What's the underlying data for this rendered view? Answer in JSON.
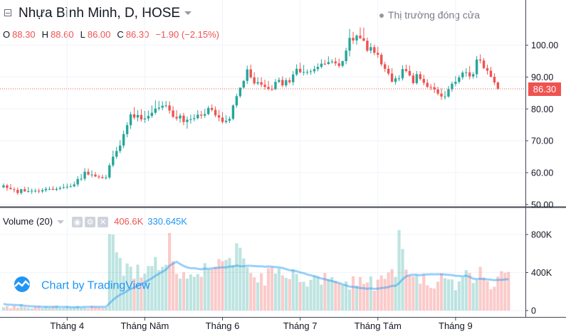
{
  "header": {
    "title": "Nhựa Bình Minh, D, HOSE",
    "market_status": "Thị trường đóng cửa",
    "ohlc": {
      "o_label": "O",
      "o": "88.30",
      "h_label": "H",
      "h": "88.60",
      "l_label": "L",
      "l": "86.00",
      "c_label": "C",
      "c": "86.30",
      "change": "−1.90 (−2.15%)"
    }
  },
  "volume_legend": {
    "label": "Volume (20)",
    "volume": "406.6K",
    "ma": "330.645K"
  },
  "last_price_label": "86.30",
  "watermark": "Chart by TradingView",
  "icons": {
    "collapse": "collapse-icon",
    "dropdown": "chevron-down-icon",
    "status": "status-dot-icon",
    "eye": "eye-icon",
    "settings": "gear-icon",
    "close": "close-icon",
    "logo": "tradingview-cloud-icon"
  },
  "colors": {
    "up": "#26a69a",
    "down": "#ef5350",
    "ma_line": "#2196f3",
    "grid": "#f0f3fa"
  },
  "chart_data": [
    {
      "type": "candlestick",
      "title": "Nhựa Bình Minh, D, HOSE",
      "y_ticks": [
        50,
        60,
        70,
        80,
        90,
        100
      ],
      "y_tick_labels": [
        "50.00",
        "60.00",
        "70.00",
        "80.00",
        "90.00",
        "100.00"
      ],
      "ylim": [
        49.5,
        107.5
      ],
      "last_price": 86.3,
      "x_tick_labels": [
        "Tháng 4",
        "Tháng Năm",
        "Tháng 6",
        "Tháng 7",
        "Tháng Tám",
        "Tháng 9"
      ],
      "x_tick_index": [
        18,
        40,
        62,
        84,
        106,
        128
      ],
      "grid": true,
      "series": {
        "open": [
          55.4,
          56.0,
          55.2,
          54.8,
          54.6,
          53.6,
          54.8,
          54.1,
          54.2,
          54.3,
          54.3,
          54.1,
          54.5,
          54.9,
          54.9,
          54.6,
          54.9,
          55.2,
          55.4,
          55.6,
          55.7,
          56.3,
          58.0,
          58.1,
          60.3,
          59.4,
          59.4,
          58.8,
          58.6,
          58.3,
          58.5,
          62.3,
          65.0,
          66.8,
          68.5,
          72.1,
          74.9,
          78.3,
          77.3,
          78.1,
          76.7,
          77.0,
          77.8,
          78.8,
          80.1,
          80.4,
          81.0,
          81.1,
          79.5,
          77.5,
          77.0,
          77.9,
          75.9,
          76.6,
          76.8,
          77.1,
          78.2,
          77.9,
          78.4,
          80.3,
          79.7,
          78.0,
          77.3,
          75.9,
          76.3,
          76.9,
          81.1,
          84.0,
          86.7,
          88.8,
          92.4,
          89.9,
          88.0,
          88.4,
          87.6,
          86.9,
          86.3,
          86.2,
          88.5,
          89.1,
          87.4,
          89.0,
          88.4,
          90.8,
          92.6,
          91.5,
          91.6,
          91.6,
          91.8,
          92.5,
          93.2,
          94.2,
          94.1,
          94.7,
          94.9,
          94.3,
          93.5,
          95.0,
          98.3,
          102.3,
          101.5,
          103.0,
          102.2,
          101.4,
          98.3,
          99.4,
          97.6,
          97.0,
          94.0,
          92.6,
          91.1,
          88.5,
          89.6,
          89.6,
          92.5,
          91.9,
          90.5,
          88.1,
          90.9,
          89.4,
          88.2,
          86.9,
          86.8,
          86.1,
          84.8,
          83.9,
          83.9,
          86.2,
          87.9,
          88.5,
          89.9,
          91.4,
          91.5,
          90.2,
          90.9,
          95.5,
          95.2,
          92.8,
          92.0,
          90.1,
          88.3
        ],
        "high": [
          56.6,
          56.5,
          56.4,
          55.4,
          55.4,
          54.9,
          55.6,
          55.5,
          55.0,
          55.0,
          55.0,
          55.1,
          55.5,
          55.6,
          55.8,
          55.5,
          55.8,
          56.5,
          56.6,
          56.6,
          57.2,
          58.9,
          59.6,
          61.4,
          61.3,
          60.7,
          60.2,
          59.4,
          59.4,
          59.3,
          63.0,
          66.9,
          68.1,
          70.2,
          73.2,
          75.8,
          79.1,
          80.5,
          79.6,
          79.9,
          79.4,
          79.5,
          81.1,
          82.7,
          82.5,
          82.4,
          82.5,
          82.4,
          80.9,
          79.6,
          78.6,
          78.8,
          77.6,
          78.2,
          78.4,
          79.6,
          79.4,
          80.0,
          81.0,
          81.4,
          80.8,
          79.7,
          79.0,
          78.0,
          77.6,
          81.4,
          84.8,
          86.3,
          89.1,
          93.6,
          93.9,
          91.5,
          89.9,
          89.9,
          89.2,
          88.8,
          87.5,
          89.4,
          89.9,
          90.2,
          89.7,
          89.8,
          91.9,
          94.0,
          94.5,
          93.8,
          92.4,
          92.5,
          93.6,
          94.3,
          95.6,
          95.4,
          96.5,
          95.6,
          96.1,
          95.8,
          95.2,
          99.2,
          105.1,
          104.2,
          103.4,
          105.6,
          105.5,
          102.4,
          100.7,
          100.2,
          99.5,
          97.6,
          94.8,
          93.7,
          92.8,
          90.4,
          90.6,
          93.7,
          93.9,
          93.6,
          91.3,
          91.9,
          91.8,
          90.7,
          89.3,
          87.8,
          88.2,
          87.0,
          86.4,
          85.6,
          87.2,
          88.6,
          90.3,
          90.6,
          92.0,
          92.8,
          93.4,
          91.6,
          96.6,
          97.1,
          96.0,
          93.9,
          93.2,
          91.2,
          88.6
        ],
        "low": [
          55.1,
          54.3,
          54.7,
          53.8,
          53.0,
          53.1,
          54.0,
          53.7,
          53.3,
          53.7,
          53.5,
          53.6,
          53.9,
          54.5,
          54.5,
          54.2,
          54.5,
          54.9,
          54.8,
          55.3,
          55.4,
          55.6,
          57.4,
          57.4,
          59.1,
          58.5,
          58.6,
          58.0,
          58.1,
          57.8,
          58.0,
          61.7,
          64.3,
          66.1,
          67.7,
          71.1,
          73.7,
          76.7,
          76.1,
          76.0,
          75.6,
          76.2,
          77.2,
          78.2,
          79.5,
          79.6,
          80.4,
          78.5,
          77.2,
          76.3,
          75.7,
          74.9,
          73.8,
          75.4,
          76.1,
          76.7,
          76.9,
          77.2,
          78.0,
          79.2,
          77.4,
          76.1,
          75.4,
          75.4,
          75.6,
          76.4,
          80.4,
          83.5,
          86.2,
          87.8,
          89.5,
          87.5,
          87.4,
          86.8,
          86.0,
          85.8,
          85.6,
          85.8,
          88.1,
          86.8,
          86.8,
          87.9,
          87.4,
          90.3,
          91.2,
          90.5,
          90.7,
          90.7,
          91.1,
          91.8,
          92.7,
          93.7,
          93.9,
          94.2,
          93.5,
          92.9,
          93.0,
          94.0,
          96.5,
          100.4,
          100.2,
          101.9,
          101.2,
          97.8,
          97.4,
          96.9,
          96.0,
          93.4,
          91.6,
          90.5,
          88.4,
          87.6,
          88.7,
          88.9,
          91.4,
          90.2,
          87.7,
          87.6,
          88.9,
          87.4,
          86.6,
          85.9,
          85.0,
          84.2,
          82.9,
          82.9,
          83.5,
          85.4,
          87.1,
          87.9,
          89.2,
          90.1,
          89.3,
          89.5,
          89.7,
          94.3,
          92.5,
          90.8,
          89.9,
          87.5,
          86.0
        ],
        "close": [
          56.0,
          55.2,
          54.8,
          54.6,
          53.6,
          54.8,
          54.1,
          54.2,
          54.3,
          54.3,
          54.1,
          54.5,
          54.9,
          54.9,
          54.6,
          54.9,
          55.2,
          55.4,
          55.6,
          55.7,
          56.3,
          58.0,
          58.1,
          60.3,
          59.4,
          59.4,
          58.8,
          58.6,
          58.3,
          58.5,
          62.3,
          65.0,
          66.8,
          68.5,
          72.1,
          74.9,
          78.3,
          77.3,
          78.1,
          76.7,
          77.0,
          77.8,
          78.8,
          80.1,
          80.4,
          81.0,
          81.1,
          79.5,
          77.5,
          77.0,
          77.9,
          75.9,
          76.6,
          76.8,
          77.1,
          78.2,
          77.9,
          78.4,
          80.3,
          79.7,
          78.0,
          77.3,
          75.9,
          76.3,
          76.9,
          81.1,
          84.0,
          86.7,
          88.8,
          92.4,
          89.9,
          88.0,
          88.4,
          87.6,
          86.9,
          86.3,
          86.2,
          88.5,
          89.1,
          87.4,
          89.0,
          88.4,
          90.8,
          92.6,
          91.5,
          91.6,
          91.6,
          91.8,
          92.5,
          93.2,
          94.2,
          94.1,
          94.7,
          94.9,
          94.3,
          93.5,
          95.0,
          98.3,
          102.3,
          101.5,
          103.0,
          102.2,
          101.4,
          98.3,
          99.4,
          97.6,
          97.0,
          94.0,
          92.6,
          91.1,
          88.5,
          89.6,
          89.6,
          92.5,
          91.9,
          90.5,
          88.1,
          90.9,
          89.4,
          88.2,
          86.9,
          86.8,
          86.1,
          84.8,
          83.9,
          83.9,
          86.2,
          87.9,
          88.5,
          89.9,
          91.4,
          91.5,
          90.2,
          90.9,
          95.5,
          95.2,
          92.8,
          92.0,
          90.1,
          88.3,
          86.3
        ]
      }
    },
    {
      "type": "bar+line",
      "title": "Volume (20)",
      "y_ticks": [
        0,
        400000,
        800000
      ],
      "y_tick_labels": [
        "0",
        "400K",
        "800K"
      ],
      "ylim": [
        0,
        860000
      ],
      "series": [
        {
          "name": "Volume",
          "values": [
            35000,
            46000,
            23000,
            49000,
            31000,
            65000,
            36000,
            28000,
            22000,
            39000,
            43000,
            28000,
            43000,
            32000,
            43000,
            52000,
            25000,
            28000,
            45000,
            32000,
            37000,
            49000,
            29000,
            33000,
            21000,
            49000,
            36000,
            34000,
            27000,
            28000,
            804000,
            798000,
            613000,
            553000,
            367000,
            496000,
            462000,
            336000,
            483000,
            348000,
            388000,
            469000,
            468000,
            564000,
            426000,
            461000,
            481000,
            816000,
            520000,
            385000,
            336000,
            403000,
            336000,
            380000,
            355000,
            384000,
            355000,
            498000,
            436000,
            435000,
            460000,
            542000,
            520000,
            533000,
            553000,
            479000,
            709000,
            661000,
            549000,
            455000,
            395000,
            350000,
            296000,
            392000,
            263000,
            445000,
            455000,
            389000,
            442000,
            370000,
            344000,
            331000,
            433000,
            385000,
            300000,
            304000,
            253000,
            322000,
            364000,
            354000,
            272000,
            396000,
            331000,
            352000,
            312000,
            288000,
            269000,
            307000,
            221000,
            361000,
            263000,
            353000,
            280000,
            295000,
            359000,
            209000,
            325000,
            369000,
            334000,
            401000,
            435000,
            355000,
            847000,
            648000,
            430000,
            368000,
            361000,
            374000,
            282000,
            377000,
            266000,
            239000,
            232000,
            304000,
            394000,
            340000,
            328000,
            327000,
            213000,
            307000,
            348000,
            426000,
            396000,
            290000,
            321000,
            460000,
            348000,
            310000,
            223000,
            250000,
            358000,
            415000,
            397000,
            406600
          ],
          "direction": [
            "up",
            "down",
            "down",
            "down",
            "down",
            "up",
            "down",
            "up",
            "up",
            "down",
            "down",
            "up",
            "up",
            "up",
            "down",
            "up",
            "up",
            "up",
            "up",
            "up",
            "up",
            "up",
            "up",
            "up",
            "down",
            "down",
            "down",
            "down",
            "down",
            "up",
            "up",
            "up",
            "up",
            "up",
            "up",
            "up",
            "up",
            "down",
            "up",
            "down",
            "up",
            "up",
            "up",
            "up",
            "up",
            "up",
            "up",
            "down",
            "down",
            "down",
            "up",
            "down",
            "up",
            "up",
            "up",
            "up",
            "down",
            "up",
            "up",
            "down",
            "down",
            "down",
            "down",
            "up",
            "up",
            "up",
            "up",
            "up",
            "up",
            "up",
            "down",
            "down",
            "up",
            "down",
            "down",
            "down",
            "down",
            "up",
            "up",
            "down",
            "up",
            "down",
            "up",
            "up",
            "down",
            "up",
            "up",
            "up",
            "up",
            "up",
            "up",
            "down",
            "up",
            "up",
            "down",
            "down",
            "up",
            "up",
            "up",
            "down",
            "up",
            "down",
            "down",
            "down",
            "up",
            "down",
            "down",
            "down",
            "down",
            "down",
            "down",
            "up",
            "up",
            "up",
            "down",
            "down",
            "down",
            "up",
            "down",
            "down",
            "down",
            "down",
            "down",
            "down",
            "down",
            "up",
            "up",
            "up",
            "up",
            "up",
            "up",
            "up",
            "down",
            "up",
            "up",
            "down",
            "down",
            "down",
            "down",
            "down",
            "down"
          ]
        },
        {
          "name": "MA",
          "values": [
            70000,
            61500,
            61800,
            59000,
            57000,
            57300,
            50300,
            46800,
            44700,
            42800,
            42800,
            40000,
            40000,
            40000,
            38000,
            38700,
            37500,
            37800,
            38000,
            35000,
            35500,
            35600,
            35000,
            37800,
            38200,
            38800,
            38600,
            38500,
            38900,
            38200,
            76000,
            113000,
            142000,
            167000,
            184000,
            206000,
            227000,
            240000,
            263000,
            280000,
            298000,
            318000,
            339000,
            366000,
            387000,
            408000,
            431000,
            471000,
            495000,
            513000,
            489000,
            469000,
            455000,
            446000,
            446000,
            440000,
            434000,
            442000,
            440000,
            444000,
            448000,
            452000,
            455000,
            454000,
            464000,
            463000,
            474000,
            466000,
            467000,
            471000,
            471000,
            468000,
            466000,
            466000,
            461000,
            464000,
            462000,
            457000,
            454000,
            448000,
            436000,
            425000,
            421000,
            414000,
            401000,
            393000,
            380000,
            371000,
            362000,
            351000,
            337000,
            330000,
            319000,
            310000,
            300000,
            290000,
            276000,
            264000,
            252000,
            248000,
            244000,
            236000,
            235000,
            229000,
            234000,
            228000,
            231000,
            237000,
            240000,
            247000,
            260000,
            260000,
            287000,
            330000,
            358000,
            373000,
            378000,
            377000,
            371000,
            380000,
            379000,
            382000,
            381000,
            382000,
            381000,
            379000,
            376000,
            373000,
            366000,
            365000,
            359000,
            367000,
            354000,
            336000,
            331000,
            335000,
            331000,
            328000,
            325000,
            319000,
            322000,
            324000,
            327000,
            330645
          ]
        }
      ]
    }
  ]
}
